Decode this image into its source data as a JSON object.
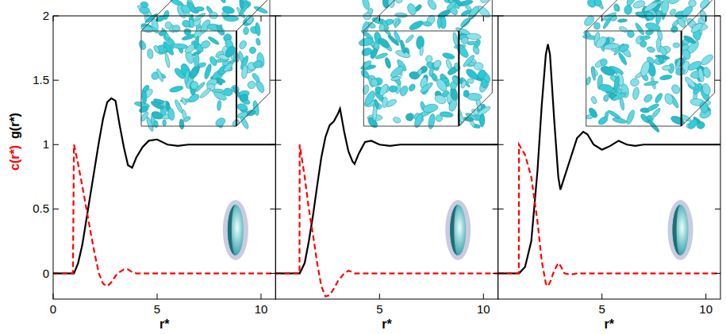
{
  "chart_data": [
    {
      "type": "line",
      "xlabel": "r*",
      "xlim": [
        0,
        10.7
      ],
      "ylim": [
        -0.2,
        2
      ],
      "xticks": [
        0,
        5,
        10
      ],
      "yticks": [
        0,
        0.5,
        1,
        1.5,
        2
      ],
      "tick_labels": true,
      "x": [
        0,
        0.95,
        1.0,
        1.2,
        1.4,
        1.6,
        1.8,
        2.0,
        2.2,
        2.4,
        2.6,
        2.8,
        3.0,
        3.2,
        3.4,
        3.6,
        3.8,
        4.0,
        4.3,
        4.6,
        5.0,
        5.5,
        6.0,
        6.5,
        7,
        8,
        9,
        10,
        10.7
      ],
      "series": [
        {
          "name": "g(r*)",
          "color": "#000000",
          "line_style": "solid",
          "values": [
            0,
            0,
            0,
            0.08,
            0.22,
            0.42,
            0.62,
            0.82,
            1.02,
            1.2,
            1.33,
            1.36,
            1.34,
            1.15,
            0.98,
            0.84,
            0.82,
            0.9,
            0.98,
            1.03,
            1.04,
            1.0,
            0.99,
            1.0,
            1.0,
            1.0,
            1.0,
            1.0,
            1.0
          ]
        },
        {
          "name": "c(r*)",
          "color": "#ff0000",
          "line_style": "dashed",
          "values": [
            0,
            0,
            1.0,
            0.85,
            0.68,
            0.5,
            0.32,
            0.15,
            0.0,
            -0.08,
            -0.1,
            -0.07,
            -0.02,
            0.01,
            0.03,
            0.03,
            0.01,
            0,
            0,
            0,
            0,
            0,
            0,
            0,
            0,
            0,
            0,
            0,
            0
          ]
        }
      ]
    },
    {
      "type": "line",
      "xlabel": "r*",
      "xlim": [
        0,
        10.7
      ],
      "ylim": [
        -0.2,
        2
      ],
      "xticks": [
        5,
        10
      ],
      "yticks": [
        0,
        0.5,
        1,
        1.5,
        2
      ],
      "tick_labels": "x",
      "x": [
        0,
        1.15,
        1.16,
        1.4,
        1.6,
        1.8,
        2.0,
        2.2,
        2.4,
        2.6,
        2.8,
        3.0,
        3.1,
        3.3,
        3.5,
        3.7,
        3.8,
        4.0,
        4.3,
        4.6,
        5.0,
        5.5,
        6,
        7,
        8,
        9,
        10,
        10.7
      ],
      "series": [
        {
          "color": "#000000",
          "line_style": "solid",
          "values": [
            0,
            0,
            0,
            0.08,
            0.25,
            0.45,
            0.68,
            0.9,
            1.06,
            1.15,
            1.18,
            1.24,
            1.28,
            1.1,
            0.95,
            0.87,
            0.85,
            0.93,
            1.02,
            1.03,
            1.0,
            0.99,
            1.0,
            1.0,
            1.0,
            1.0,
            1.0,
            1.0
          ]
        },
        {
          "color": "#ff0000",
          "line_style": "dashed",
          "values": [
            0,
            0,
            1.0,
            0.75,
            0.5,
            0.3,
            0.08,
            -0.1,
            -0.18,
            -0.17,
            -0.12,
            -0.06,
            -0.04,
            0.0,
            0.02,
            0.01,
            0,
            0,
            0,
            0,
            0,
            0,
            0,
            0,
            0,
            0,
            0,
            0
          ]
        }
      ]
    },
    {
      "type": "line",
      "xlabel": "r*",
      "xlim": [
        0,
        10.7
      ],
      "ylim": [
        -0.2,
        2
      ],
      "xticks": [
        5,
        10
      ],
      "yticks": [
        0,
        0.5,
        1,
        1.5,
        2
      ],
      "tick_labels": "x",
      "x": [
        0,
        1.0,
        1.01,
        1.3,
        1.6,
        1.9,
        2.1,
        2.3,
        2.4,
        2.5,
        2.7,
        2.9,
        3.0,
        3.2,
        3.5,
        3.8,
        4.1,
        4.3,
        4.6,
        5.0,
        5.4,
        5.8,
        6.2,
        6.6,
        7,
        8,
        9,
        10,
        10.7
      ],
      "series": [
        {
          "color": "#000000",
          "line_style": "solid",
          "values": [
            0,
            0,
            0,
            0.05,
            0.25,
            0.8,
            1.3,
            1.7,
            1.78,
            1.7,
            1.2,
            0.75,
            0.65,
            0.75,
            0.9,
            1.05,
            1.1,
            1.08,
            1.0,
            0.96,
            0.99,
            1.03,
            1.0,
            0.99,
            1.0,
            1.0,
            1.0,
            1.0,
            1.0
          ]
        },
        {
          "color": "#ff0000",
          "line_style": "dashed",
          "values": [
            0,
            0,
            1.0,
            0.92,
            0.75,
            0.4,
            0.1,
            -0.08,
            -0.1,
            -0.07,
            0.02,
            0.08,
            0.06,
            0.0,
            -0.01,
            0,
            0,
            0,
            0,
            0,
            0,
            0,
            0,
            0,
            0,
            0,
            0,
            0,
            0
          ]
        }
      ]
    }
  ]
}
